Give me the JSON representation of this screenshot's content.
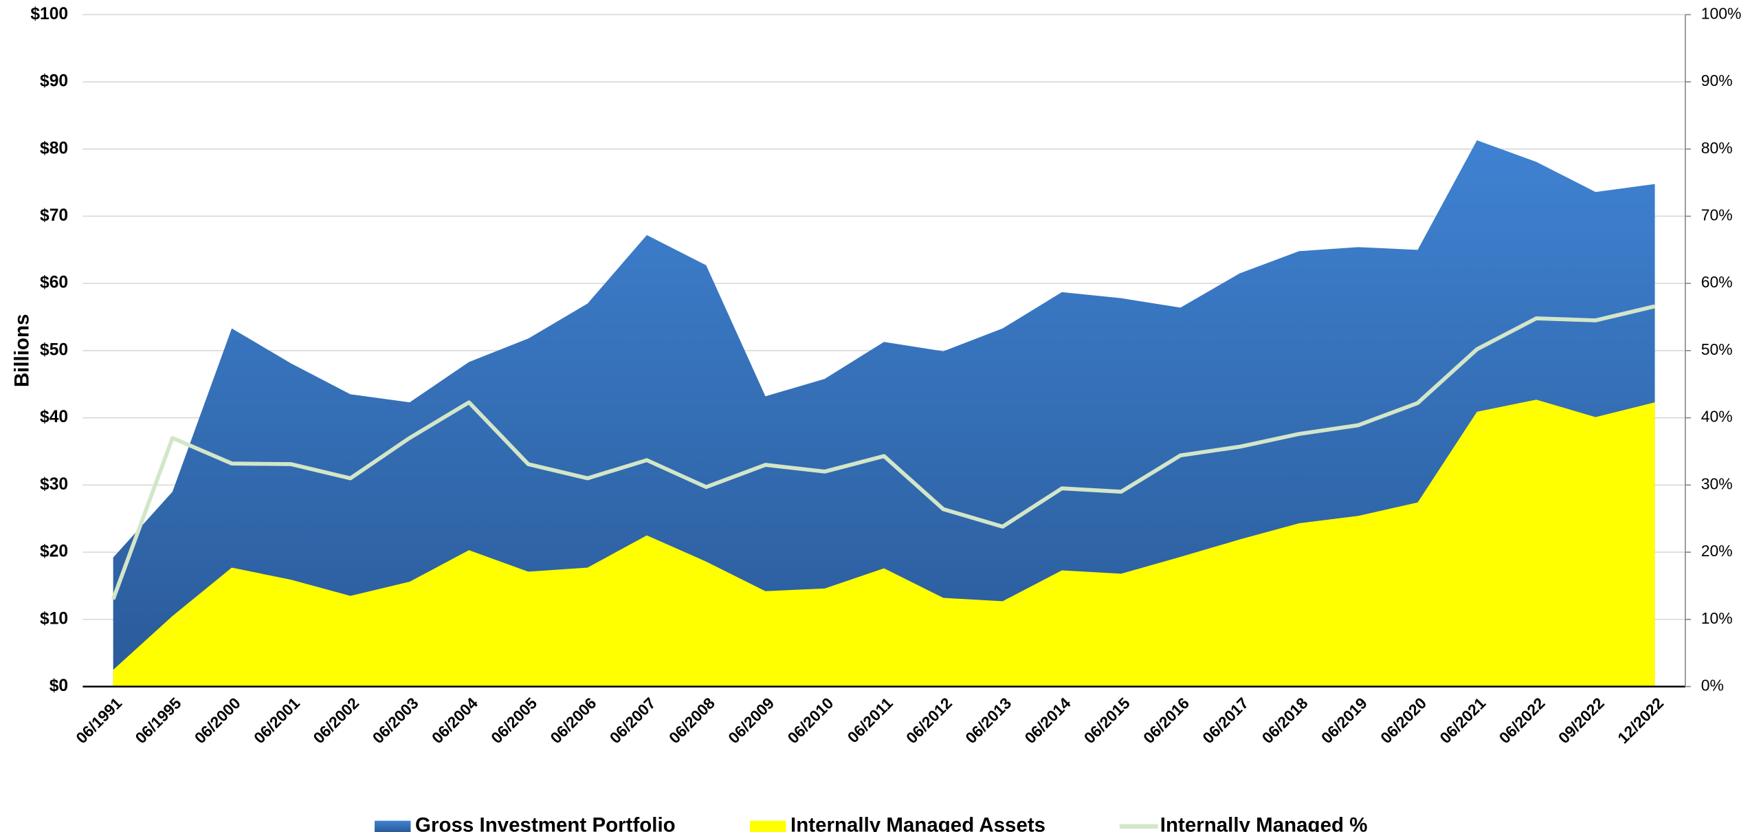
{
  "chart_data": {
    "type": "area",
    "y_label": "Billions",
    "categories": [
      "06/1991",
      "06/1995",
      "06/2000",
      "06/2001",
      "06/2002",
      "06/2003",
      "06/2004",
      "06/2005",
      "06/2006",
      "06/2007",
      "06/2008",
      "06/2009",
      "06/2010",
      "06/2011",
      "06/2012",
      "06/2013",
      "06/2014",
      "06/2015",
      "06/2016",
      "06/2017",
      "06/2018",
      "06/2019",
      "06/2020",
      "06/2021",
      "06/2022",
      "09/2022",
      "12/2022"
    ],
    "series": [
      {
        "name": "Gross Investment Portfolio",
        "type": "area",
        "color": "#3a78c6",
        "values": [
          19.2,
          29,
          53.3,
          48.1,
          43.5,
          42.3,
          48.3,
          51.8,
          57,
          67.2,
          62.7,
          43.2,
          45.8,
          51.3,
          49.9,
          53.3,
          58.7,
          57.8,
          56.4,
          61.5,
          64.8,
          65.4,
          65,
          81.3,
          78.1,
          73.6,
          74.8
        ]
      },
      {
        "name": "Internally Managed Assets",
        "type": "area",
        "color": "#ffff00",
        "values": [
          2.5,
          10.5,
          17.7,
          15.9,
          13.5,
          15.6,
          20.3,
          17.1,
          17.7,
          22.5,
          18.6,
          14.2,
          14.6,
          17.6,
          13.2,
          12.7,
          17.3,
          16.8,
          19.3,
          21.9,
          24.3,
          25.4,
          27.4,
          40.9,
          42.7,
          40.1,
          42.3
        ]
      },
      {
        "name": "Internally Managed %",
        "type": "line",
        "axis": "y2",
        "color": "#d3e6c8",
        "values": [
          13,
          37,
          33.2,
          33.1,
          31,
          37,
          42.3,
          33.1,
          31,
          33.7,
          29.7,
          33,
          32,
          34.3,
          26.4,
          23.8,
          29.5,
          29,
          34.4,
          35.7,
          37.6,
          38.9,
          42.2,
          50.2,
          54.8,
          54.5,
          56.6
        ]
      }
    ],
    "ylim": [
      0,
      100
    ],
    "yticks": [
      {
        "value": 0,
        "label": "$0"
      },
      {
        "value": 10,
        "label": "$10"
      },
      {
        "value": 20,
        "label": "$20"
      },
      {
        "value": 30,
        "label": "$30"
      },
      {
        "value": 40,
        "label": "$40"
      },
      {
        "value": 50,
        "label": "$50"
      },
      {
        "value": 60,
        "label": "$60"
      },
      {
        "value": 70,
        "label": "$70"
      },
      {
        "value": 80,
        "label": "$80"
      },
      {
        "value": 90,
        "label": "$90"
      },
      {
        "value": 100,
        "label": "$100"
      }
    ],
    "y2lim": [
      0,
      100
    ],
    "y2ticks": [
      {
        "value": 0,
        "label": "0%"
      },
      {
        "value": 10,
        "label": "10%"
      },
      {
        "value": 20,
        "label": "20%"
      },
      {
        "value": 30,
        "label": "30%"
      },
      {
        "value": 40,
        "label": "40%"
      },
      {
        "value": 50,
        "label": "50%"
      },
      {
        "value": 60,
        "label": "60%"
      },
      {
        "value": 70,
        "label": "70%"
      },
      {
        "value": 80,
        "label": "80%"
      },
      {
        "value": 90,
        "label": "90%"
      },
      {
        "value": 100,
        "label": "100%"
      }
    ],
    "grid": true,
    "legend": "bottom"
  }
}
